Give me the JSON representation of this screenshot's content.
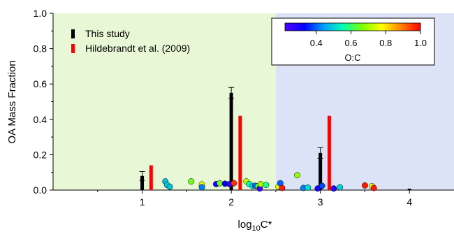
{
  "chart_data": {
    "type": "bar",
    "xlabel_main": "log",
    "xlabel_sub": "10",
    "xlabel_tail": "C*",
    "ylabel": "OA Mass Fraction",
    "xlim": [
      0.0,
      4.5
    ],
    "ylim": [
      0.0,
      1.0
    ],
    "x_ticks": [
      {
        "value": 1,
        "label": "1"
      },
      {
        "value": 2,
        "label": "2"
      },
      {
        "value": 3,
        "label": "3"
      },
      {
        "value": 4,
        "label": "4"
      }
    ],
    "y_ticks": [
      {
        "value": 0.0,
        "label": "0.0"
      },
      {
        "value": 0.2,
        "label": "0.2"
      },
      {
        "value": 0.4,
        "label": "0.4"
      },
      {
        "value": 0.6,
        "label": "0.6"
      },
      {
        "value": 0.8,
        "label": "0.8"
      },
      {
        "value": 1.0,
        "label": "1.0"
      }
    ],
    "background_regions": [
      {
        "x_from": 0.0,
        "x_to": 2.5,
        "color": "#e8f8d6"
      },
      {
        "x_from": 2.5,
        "x_to": 4.5,
        "color": "#dce3f7"
      }
    ],
    "series": [
      {
        "name": "This study",
        "color": "#000000",
        "x": [
          1,
          2,
          3,
          4
        ],
        "values": [
          0.08,
          0.55,
          0.21,
          0.0
        ],
        "error": [
          0.025,
          0.03,
          0.03,
          0.0
        ]
      },
      {
        "name": "Hildebrandt et al. (2009)",
        "color": "#ff0000",
        "x": [
          1.1,
          2.1,
          3.1
        ],
        "values": [
          0.14,
          0.42,
          0.42
        ]
      }
    ],
    "scatter": [
      {
        "x": 1.26,
        "y": 0.045,
        "oc": 0.48
      },
      {
        "x": 1.28,
        "y": 0.025,
        "oc": 0.5
      },
      {
        "x": 1.31,
        "y": 0.015,
        "oc": 0.48
      },
      {
        "x": 1.55,
        "y": 0.045,
        "oc": 0.65
      },
      {
        "x": 1.67,
        "y": 0.028,
        "oc": 0.75
      },
      {
        "x": 1.67,
        "y": 0.012,
        "oc": 0.42
      },
      {
        "x": 1.83,
        "y": 0.03,
        "oc": 0.3
      },
      {
        "x": 1.87,
        "y": 0.035,
        "oc": 0.65
      },
      {
        "x": 1.93,
        "y": 0.032,
        "oc": 0.32
      },
      {
        "x": 1.98,
        "y": 0.03,
        "oc": 0.26
      },
      {
        "x": 2.03,
        "y": 0.035,
        "oc": 0.96
      },
      {
        "x": 2.17,
        "y": 0.045,
        "oc": 0.72
      },
      {
        "x": 2.2,
        "y": 0.03,
        "oc": 0.55
      },
      {
        "x": 2.24,
        "y": 0.02,
        "oc": 0.5
      },
      {
        "x": 2.27,
        "y": 0.02,
        "oc": 0.4
      },
      {
        "x": 2.3,
        "y": 0.018,
        "oc": 0.62
      },
      {
        "x": 2.32,
        "y": 0.005,
        "oc": 0.24
      },
      {
        "x": 2.33,
        "y": 0.03,
        "oc": 0.7
      },
      {
        "x": 2.39,
        "y": 0.025,
        "oc": 0.58
      },
      {
        "x": 2.53,
        "y": 0.015,
        "oc": 0.75
      },
      {
        "x": 2.55,
        "y": 0.035,
        "oc": 0.4
      },
      {
        "x": 2.57,
        "y": 0.008,
        "oc": 0.98
      },
      {
        "x": 2.74,
        "y": 0.08,
        "oc": 0.68
      },
      {
        "x": 2.81,
        "y": 0.008,
        "oc": 0.42
      },
      {
        "x": 2.86,
        "y": 0.01,
        "oc": 0.52
      },
      {
        "x": 2.97,
        "y": 0.005,
        "oc": 0.3
      },
      {
        "x": 3.02,
        "y": 0.02,
        "oc": 0.38
      },
      {
        "x": 3.15,
        "y": 0.005,
        "oc": 0.28
      },
      {
        "x": 3.22,
        "y": 0.012,
        "oc": 0.5
      },
      {
        "x": 3.5,
        "y": 0.022,
        "oc": 0.98
      },
      {
        "x": 3.58,
        "y": 0.018,
        "oc": 0.75
      },
      {
        "x": 3.6,
        "y": 0.008,
        "oc": 0.98
      }
    ],
    "colorbar": {
      "label": "O:C",
      "range": [
        0.22,
        1.0
      ],
      "ticks": [
        {
          "value": 0.4,
          "label": "0.4"
        },
        {
          "value": 0.6,
          "label": "0.6"
        },
        {
          "value": 0.8,
          "label": "0.8"
        },
        {
          "value": 1.0,
          "label": "1.0"
        }
      ],
      "colors": [
        "#5000ff",
        "#0000ff",
        "#00a0ff",
        "#00ffb0",
        "#80ff00",
        "#ffff00",
        "#ff8000",
        "#ff0000"
      ]
    },
    "legend_position": "top-left",
    "colorbar_position": "top-right"
  }
}
